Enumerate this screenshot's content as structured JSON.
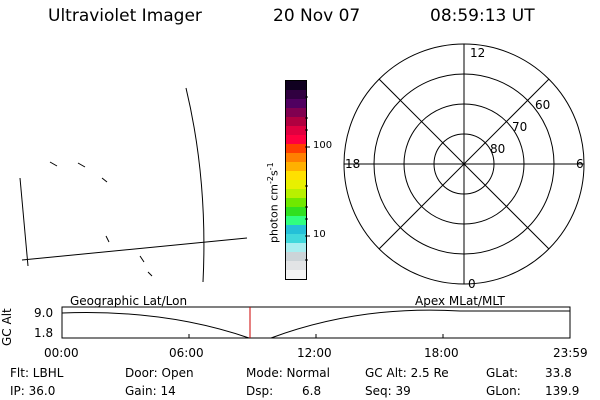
{
  "header": {
    "instrument": "Ultraviolet Imager",
    "date": "20 Nov 07",
    "time": "08:59:13 UT"
  },
  "colorbar": {
    "unit_label": "photon cm",
    "unit_exp1": "-2",
    "unit_s": "s",
    "unit_exp2": "-1",
    "tick_100": "100",
    "tick_10": "10",
    "colors": [
      "#f4f4f4",
      "#e2e4e6",
      "#ccd4d8",
      "#a8eef0",
      "#40d8dc",
      "#24c0d8",
      "#30ff80",
      "#30e020",
      "#70e800",
      "#b8f000",
      "#e8f000",
      "#ffe000",
      "#ffb000",
      "#ff8000",
      "#ff4000",
      "#ff0040",
      "#e00040",
      "#b00040",
      "#800050",
      "#500060",
      "#300040",
      "#100020"
    ]
  },
  "polar": {
    "mlt_12": "12",
    "mlt_18": "18",
    "mlt_6": "6",
    "mlt_0": "0",
    "lat_60": "60",
    "lat_70": "70",
    "lat_80": "80"
  },
  "timeline": {
    "left_label": "Geographic Lat/Lon",
    "right_label": "Apex MLat/MLT",
    "axis_title": "GC Alt",
    "y_top": "9.0",
    "y_bottom": "1.8",
    "x_ticks": [
      "00:00",
      "06:00",
      "12:00",
      "18:00",
      "23:59"
    ],
    "current_time_color": "#cc0000"
  },
  "info": {
    "flt": "Flt: LBHL",
    "ip": "IP: 36.0",
    "door": "Door: Open",
    "gain": "Gain: 14",
    "mode": "Mode: Normal",
    "dsp_label": "Dsp:",
    "dsp_value": "6.8",
    "gcalt": "GC Alt: 2.5 Re",
    "seq": "Seq: 39",
    "glat_label": "GLat:",
    "glat_value": "33.8",
    "glon_label": "GLon:",
    "glon_value": "139.9"
  }
}
